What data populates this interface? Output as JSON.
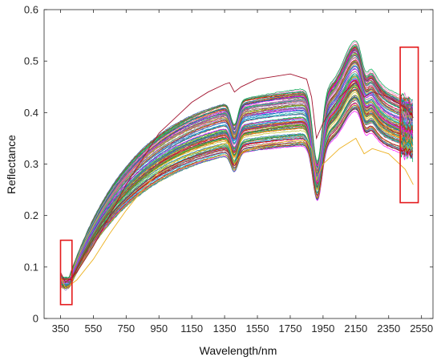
{
  "chart_data": {
    "type": "line",
    "title": "",
    "xlabel": "Wavelength/nm",
    "ylabel": "Reflectance",
    "xlim": [
      250,
      2620
    ],
    "ylim": [
      0,
      0.6
    ],
    "x_ticks": [
      350,
      550,
      750,
      950,
      1150,
      1350,
      1550,
      1750,
      1950,
      2150,
      2350,
      2550
    ],
    "x_tick_labels": [
      "350",
      "550",
      "750",
      "950",
      "1150",
      "1350",
      "1550",
      "1750",
      "1950",
      "2150",
      "2350",
      "2550"
    ],
    "y_ticks": [
      0,
      0.1,
      0.2,
      0.3,
      0.4,
      0.5,
      0.6
    ],
    "y_tick_labels": [
      "0",
      "0.1",
      "0.2",
      "0.3",
      "0.4",
      "0.5",
      "0.6"
    ],
    "grid": false,
    "legend": "none",
    "series_count": 120,
    "series_description": "Soil reflectance spectra, one curve per sample; reflectance rises from about 0.05–0.10 at 400 nm to a peak of about 0.35–0.55 near 2150 nm, with absorption dips near 1400 nm and 1900 nm.",
    "representative_series": [
      {
        "x": [
          350,
          380,
          400,
          450,
          550,
          650,
          750,
          850,
          950,
          1050,
          1150,
          1250,
          1350,
          1380,
          1410,
          1450,
          1550,
          1650,
          1750,
          1800,
          1850,
          1880,
          1910,
          1950,
          2050,
          2150,
          2200,
          2250,
          2350,
          2450,
          2500
        ],
        "y": [
          0.09,
          0.07,
          0.075,
          0.09,
          0.14,
          0.2,
          0.26,
          0.31,
          0.36,
          0.39,
          0.42,
          0.44,
          0.455,
          0.458,
          0.44,
          0.45,
          0.465,
          0.47,
          0.475,
          0.47,
          0.465,
          0.43,
          0.35,
          0.38,
          0.43,
          0.46,
          0.43,
          0.44,
          0.43,
          0.41,
          0.39
        ]
      },
      {
        "x": [
          350,
          380,
          400,
          450,
          550,
          650,
          750,
          850,
          950,
          1050,
          1150,
          1250,
          1350,
          1380,
          1410,
          1450,
          1550,
          1650,
          1750,
          1800,
          1850,
          1880,
          1910,
          1950,
          2050,
          2150,
          2200,
          2250,
          2350,
          2450,
          2500
        ],
        "y": [
          0.08,
          0.06,
          0.063,
          0.075,
          0.115,
          0.165,
          0.21,
          0.25,
          0.285,
          0.305,
          0.32,
          0.33,
          0.34,
          0.34,
          0.3,
          0.32,
          0.335,
          0.34,
          0.345,
          0.345,
          0.345,
          0.33,
          0.27,
          0.3,
          0.33,
          0.35,
          0.32,
          0.33,
          0.32,
          0.29,
          0.26
        ]
      }
    ],
    "annotations": [
      {
        "type": "box",
        "x_range": [
          350,
          420
        ],
        "y_range": [
          0.027,
          0.152
        ]
      },
      {
        "type": "box",
        "x_range": [
          2420,
          2530
        ],
        "y_range": [
          0.225,
          0.527
        ]
      }
    ]
  }
}
